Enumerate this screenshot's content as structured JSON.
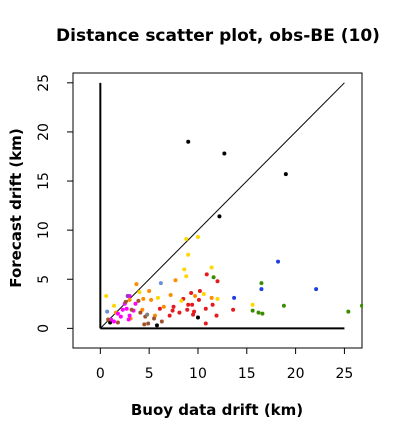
{
  "chart_data": {
    "type": "scatter",
    "title": "Distance scatter plot, obs-BE (10)",
    "xlabel": "Buoy data drift (km)",
    "ylabel": "Forecast drift (km)",
    "xlim": [
      -2.8,
      26.8
    ],
    "ylim": [
      -2.0,
      26.0
    ],
    "xticks": [
      "0",
      "5",
      "10",
      "15",
      "20",
      "25"
    ],
    "yticks": [
      "0",
      "5",
      "10",
      "15",
      "20",
      "25"
    ],
    "grid": false,
    "axis_lines": {
      "x": [
        0,
        25
      ],
      "y": [
        0,
        25
      ]
    },
    "reference_line": {
      "from": [
        0,
        0
      ],
      "to": [
        25,
        25
      ]
    },
    "colors": {
      "black": "#000000",
      "red": "#e41a1c",
      "orange": "#ff8c00",
      "gold": "#ffd700",
      "magenta": "#ff00ff",
      "brown": "#a0522d",
      "green": "#3c8c00",
      "blue": "#1f3fe0",
      "lightblue": "#6a8fd8",
      "purple": "#9932cc",
      "gray": "#808080"
    },
    "series": [
      {
        "color": "black",
        "points": [
          [
            9.0,
            19.0
          ],
          [
            12.7,
            17.8
          ],
          [
            19.0,
            15.7
          ],
          [
            12.2,
            11.4
          ],
          [
            1.0,
            0.6
          ],
          [
            10.0,
            1.1
          ],
          [
            5.8,
            0.3
          ]
        ]
      },
      {
        "color": "red",
        "points": [
          [
            9.5,
            1.4
          ],
          [
            10.8,
            0.5
          ],
          [
            7.5,
            2.2
          ],
          [
            7.1,
            1.3
          ],
          [
            8.5,
            3.0
          ],
          [
            9.0,
            2.4
          ],
          [
            10.2,
            3.8
          ],
          [
            12.0,
            4.8
          ],
          [
            10.9,
            5.5
          ],
          [
            11.5,
            2.4
          ],
          [
            9.6,
            1.7
          ],
          [
            8.1,
            1.6
          ],
          [
            9.4,
            2.4
          ],
          [
            10.8,
            2.0
          ],
          [
            7.4,
            1.8
          ],
          [
            6.1,
            2.0
          ],
          [
            8.9,
            1.9
          ],
          [
            11.9,
            1.3
          ],
          [
            13.6,
            1.9
          ],
          [
            10.1,
            2.9
          ],
          [
            9.3,
            3.6
          ]
        ]
      },
      {
        "color": "orange",
        "points": [
          [
            3.7,
            4.5
          ],
          [
            4.4,
            3.0
          ],
          [
            3.0,
            2.9
          ],
          [
            5.0,
            3.8
          ],
          [
            7.2,
            3.4
          ],
          [
            5.2,
            2.9
          ],
          [
            6.5,
            2.2
          ],
          [
            7.7,
            4.9
          ],
          [
            9.7,
            3.3
          ],
          [
            11.4,
            3.1
          ],
          [
            4.3,
            1.9
          ],
          [
            3.1,
            1.0
          ],
          [
            5.6,
            1.3
          ],
          [
            1.6,
            1.6
          ]
        ]
      },
      {
        "color": "gold",
        "points": [
          [
            8.8,
            9.1
          ],
          [
            10.0,
            9.3
          ],
          [
            9.0,
            7.5
          ],
          [
            8.6,
            6.0
          ],
          [
            11.4,
            6.2
          ],
          [
            8.8,
            5.3
          ],
          [
            10.6,
            3.5
          ],
          [
            12.0,
            3.0
          ],
          [
            8.3,
            2.8
          ],
          [
            15.6,
            2.4
          ],
          [
            4.0,
            3.7
          ],
          [
            5.9,
            3.1
          ],
          [
            0.6,
            3.3
          ],
          [
            1.4,
            2.3
          ]
        ]
      },
      {
        "color": "magenta",
        "points": [
          [
            2.7,
            2.0
          ],
          [
            1.8,
            1.5
          ],
          [
            3.0,
            1.3
          ],
          [
            2.1,
            1.2
          ],
          [
            1.4,
            0.7
          ],
          [
            2.5,
            2.5
          ],
          [
            3.0,
            3.3
          ],
          [
            3.4,
            1.8
          ],
          [
            1.1,
            0.9
          ],
          [
            2.9,
            0.9
          ],
          [
            3.6,
            2.5
          ],
          [
            2.3,
            1.9
          ]
        ]
      },
      {
        "color": "brown",
        "points": [
          [
            4.5,
            0.4
          ],
          [
            4.9,
            0.5
          ],
          [
            5.5,
            1.0
          ],
          [
            4.1,
            1.6
          ],
          [
            3.2,
            1.9
          ],
          [
            2.6,
            2.7
          ],
          [
            0.8,
            0.9
          ],
          [
            1.8,
            0.6
          ],
          [
            6.3,
            0.7
          ],
          [
            3.9,
            2.8
          ],
          [
            4.6,
            1.2
          ]
        ]
      },
      {
        "color": "green",
        "points": [
          [
            16.5,
            4.6
          ],
          [
            18.8,
            2.3
          ],
          [
            16.2,
            1.6
          ],
          [
            15.6,
            1.8
          ],
          [
            26.8,
            2.3
          ],
          [
            25.4,
            1.7
          ],
          [
            11.6,
            5.2
          ],
          [
            16.6,
            1.5
          ]
        ]
      },
      {
        "color": "blue",
        "points": [
          [
            18.2,
            6.8
          ],
          [
            22.1,
            4.0
          ],
          [
            13.7,
            3.1
          ],
          [
            16.5,
            4.0
          ]
        ]
      },
      {
        "color": "lightblue",
        "points": [
          [
            6.2,
            4.6
          ],
          [
            0.7,
            1.7
          ]
        ]
      },
      {
        "color": "purple",
        "points": [
          [
            2.8,
            3.3
          ]
        ]
      },
      {
        "color": "gray",
        "points": [
          [
            4.8,
            1.4
          ]
        ]
      }
    ]
  }
}
